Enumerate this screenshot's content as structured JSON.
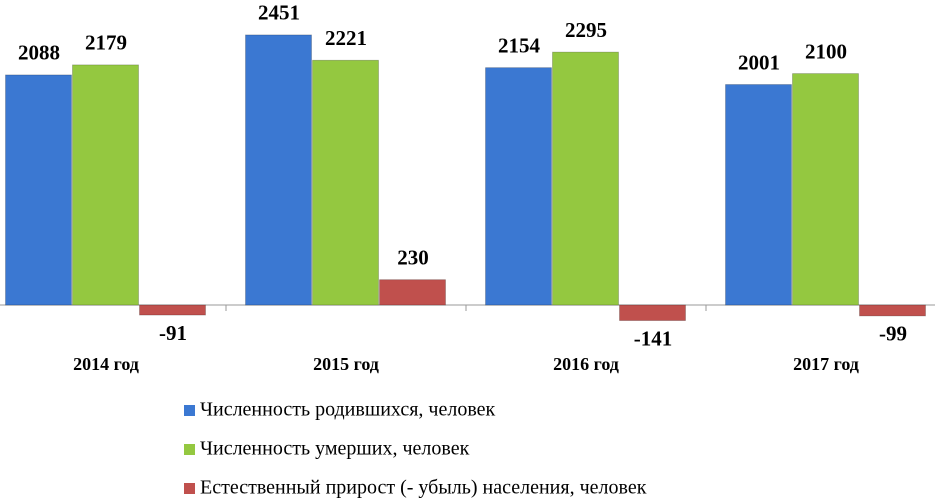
{
  "chart_data": {
    "type": "bar",
    "categories": [
      "2014 год",
      "2015 год",
      "2016 год",
      "2017 год"
    ],
    "series": [
      {
        "name": "Численность родившихся, человек",
        "color": "#3b78d2",
        "values": [
          2088,
          2451,
          2154,
          2001
        ]
      },
      {
        "name": "Численность умерших, человек",
        "color": "#94c840",
        "values": [
          2179,
          2221,
          2295,
          2100
        ]
      },
      {
        "name": "Естественный прирост (- убыль) населения, человек",
        "color": "#c0504d",
        "values": [
          -91,
          230,
          -141,
          -99
        ]
      }
    ],
    "ylim": [
      -200,
      2600
    ]
  }
}
